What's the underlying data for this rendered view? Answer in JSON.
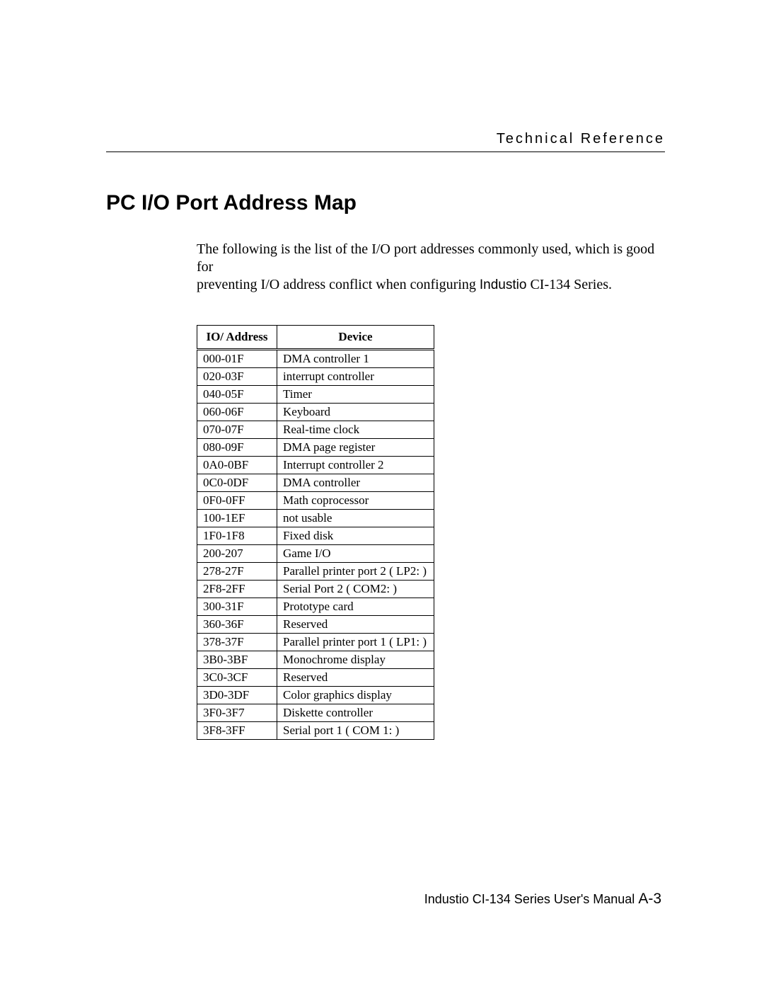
{
  "header": {
    "section": "Technical Reference"
  },
  "title": "PC I/O Port Address Map",
  "intro": {
    "line1": "The following is the list of the I/O port addresses commonly used, which is good for",
    "line2a": "preventing I/O address conflict when configuring ",
    "line2_industio": "Industio",
    "line2b": " CI-134 Series."
  },
  "table": {
    "col1": "IO/ Address",
    "col2": "Device",
    "rows": [
      {
        "addr": "000-01F",
        "dev": "DMA controller 1"
      },
      {
        "addr": "020-03F",
        "dev": "interrupt controller"
      },
      {
        "addr": "040-05F",
        "dev": "Timer"
      },
      {
        "addr": "060-06F",
        "dev": "Keyboard"
      },
      {
        "addr": "070-07F",
        "dev": "Real-time clock"
      },
      {
        "addr": "080-09F",
        "dev": "DMA page register"
      },
      {
        "addr": "0A0-0BF",
        "dev": "Interrupt controller 2"
      },
      {
        "addr": "0C0-0DF",
        "dev": "DMA controller"
      },
      {
        "addr": "0F0-0FF",
        "dev": "Math coprocessor"
      },
      {
        "addr": "100-1EF",
        "dev": "not usable"
      },
      {
        "addr": "1F0-1F8",
        "dev": "Fixed disk"
      },
      {
        "addr": "200-207",
        "dev": "Game I/O"
      },
      {
        "addr": "278-27F",
        "dev": "Parallel printer port 2 ( LP2: )"
      },
      {
        "addr": "2F8-2FF",
        "dev": "Serial Port 2 ( COM2: )"
      },
      {
        "addr": "300-31F",
        "dev": "Prototype card"
      },
      {
        "addr": "360-36F",
        "dev": "Reserved"
      },
      {
        "addr": "378-37F",
        "dev": "Parallel printer port 1 ( LP1: )"
      },
      {
        "addr": "3B0-3BF",
        "dev": "Monochrome display"
      },
      {
        "addr": "3C0-3CF",
        "dev": "Reserved"
      },
      {
        "addr": "3D0-3DF",
        "dev": "Color graphics display"
      },
      {
        "addr": "3F0-3F7",
        "dev": "Diskette controller"
      },
      {
        "addr": "3F8-3FF",
        "dev": "Serial port 1 ( COM 1: )"
      }
    ]
  },
  "footer": {
    "text": "Industio CI-134 Series User's Manual  ",
    "page": "A-3"
  }
}
